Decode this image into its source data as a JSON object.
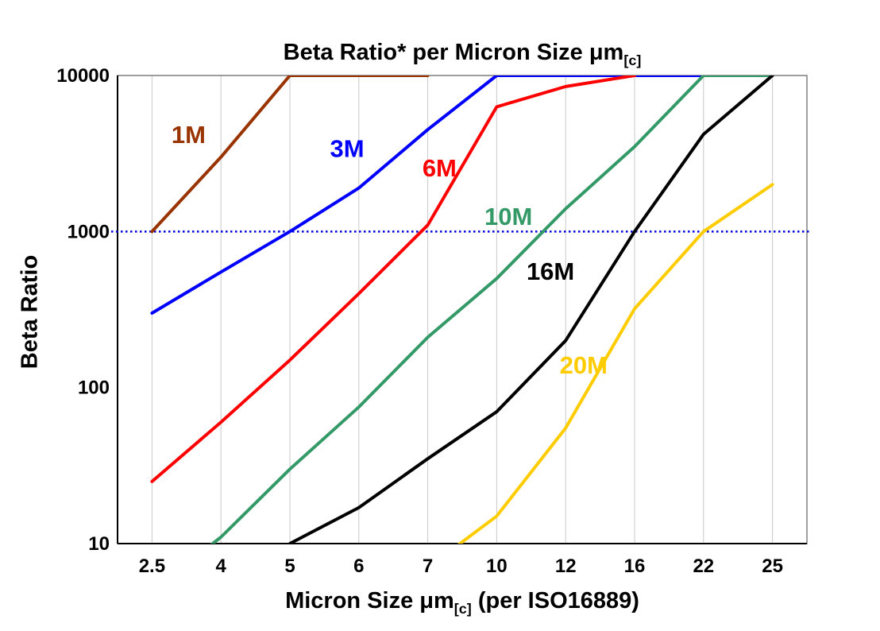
{
  "chart_data": {
    "type": "line",
    "title": {
      "text": "Beta Ratio* per Micron Size μm[c]",
      "main": "Beta Ratio* per Micron Size μm",
      "sub": "[c]"
    },
    "xlabel": {
      "text": "Micron Size μm[c] (per ISO16889)",
      "main": "Micron Size μm",
      "sub": "[c]",
      "post": " (per ISO16889)"
    },
    "ylabel": "Beta Ratio",
    "x_categories": [
      "2.5",
      "4",
      "5",
      "6",
      "7",
      "10",
      "12",
      "16",
      "22",
      "25"
    ],
    "y_axis": {
      "scale": "log",
      "ticks": [
        "10",
        "100",
        "1000",
        "10000"
      ],
      "min": 10,
      "max": 10000
    },
    "grid": {
      "vertical": true,
      "horizontal": false,
      "color": "#c9c9c9"
    },
    "legend_position": "inline-labels",
    "reference_line": {
      "value": 1000,
      "color": "#0000dd",
      "style": "dotted"
    },
    "series": [
      {
        "name": "1M",
        "color": "#993300",
        "values": [
          1000,
          3000,
          10000,
          10000,
          10000,
          null,
          null,
          null,
          null,
          null
        ],
        "label": {
          "i": 0.53,
          "v": 3700
        }
      },
      {
        "name": "3M",
        "color": "#0000ff",
        "values": [
          300,
          550,
          1000,
          1900,
          4500,
          10000,
          10000,
          10000,
          10000,
          null
        ],
        "label": {
          "i": 2.83,
          "v": 3000
        }
      },
      {
        "name": "6M",
        "color": "#ff0000",
        "values": [
          25,
          60,
          150,
          400,
          1100,
          6300,
          8500,
          10000,
          null,
          null
        ],
        "label": {
          "i": 4.17,
          "v": 2250
        }
      },
      {
        "name": "10M",
        "color": "#339966",
        "values": [
          5,
          11,
          30,
          75,
          210,
          500,
          1400,
          3500,
          10000,
          10000
        ],
        "label": {
          "i": 5.17,
          "v": 1100
        }
      },
      {
        "name": "16M",
        "color": "#000000",
        "values": [
          null,
          null,
          10,
          17,
          35,
          70,
          200,
          1000,
          4200,
          10000
        ],
        "label": {
          "i": 5.78,
          "v": 490
        }
      },
      {
        "name": "20M",
        "color": "#ffcc00",
        "values": [
          null,
          null,
          null,
          null,
          7,
          15,
          55,
          320,
          1000,
          2000
        ],
        "label": {
          "i": 6.26,
          "v": 123
        }
      }
    ]
  }
}
